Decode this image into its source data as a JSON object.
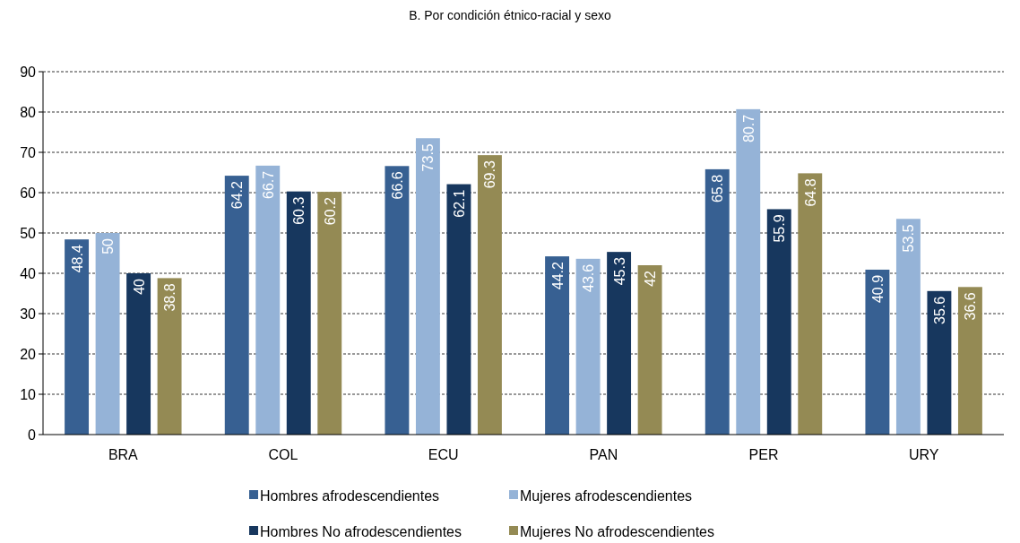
{
  "chart_data": {
    "type": "bar",
    "title": "B. Por condición étnico-racial y sexo",
    "categories": [
      "BRA",
      "COL",
      "ECU",
      "PAN",
      "PER",
      "URY"
    ],
    "series": [
      {
        "name": "Hombres afrodescendientes",
        "color": "#376092",
        "values": [
          48.4,
          64.2,
          66.6,
          44.2,
          65.8,
          40.9
        ]
      },
      {
        "name": "Mujeres afrodescendientes",
        "color": "#95b3d7",
        "values": [
          50,
          66.7,
          73.5,
          43.6,
          80.7,
          53.5
        ]
      },
      {
        "name": "Hombres No afrodescendientes",
        "color": "#17375e",
        "values": [
          40,
          60.3,
          62.1,
          45.3,
          55.9,
          35.6
        ]
      },
      {
        "name": "Mujeres No afrodescendientes",
        "color": "#948a54",
        "values": [
          38.8,
          60.2,
          69.3,
          42,
          64.8,
          36.6
        ]
      }
    ],
    "ylim": [
      0,
      90
    ],
    "yticks": [
      0,
      10,
      20,
      30,
      40,
      50,
      60,
      70,
      80,
      90
    ],
    "grid": "y",
    "data_labels": true,
    "legend": "bottom"
  }
}
